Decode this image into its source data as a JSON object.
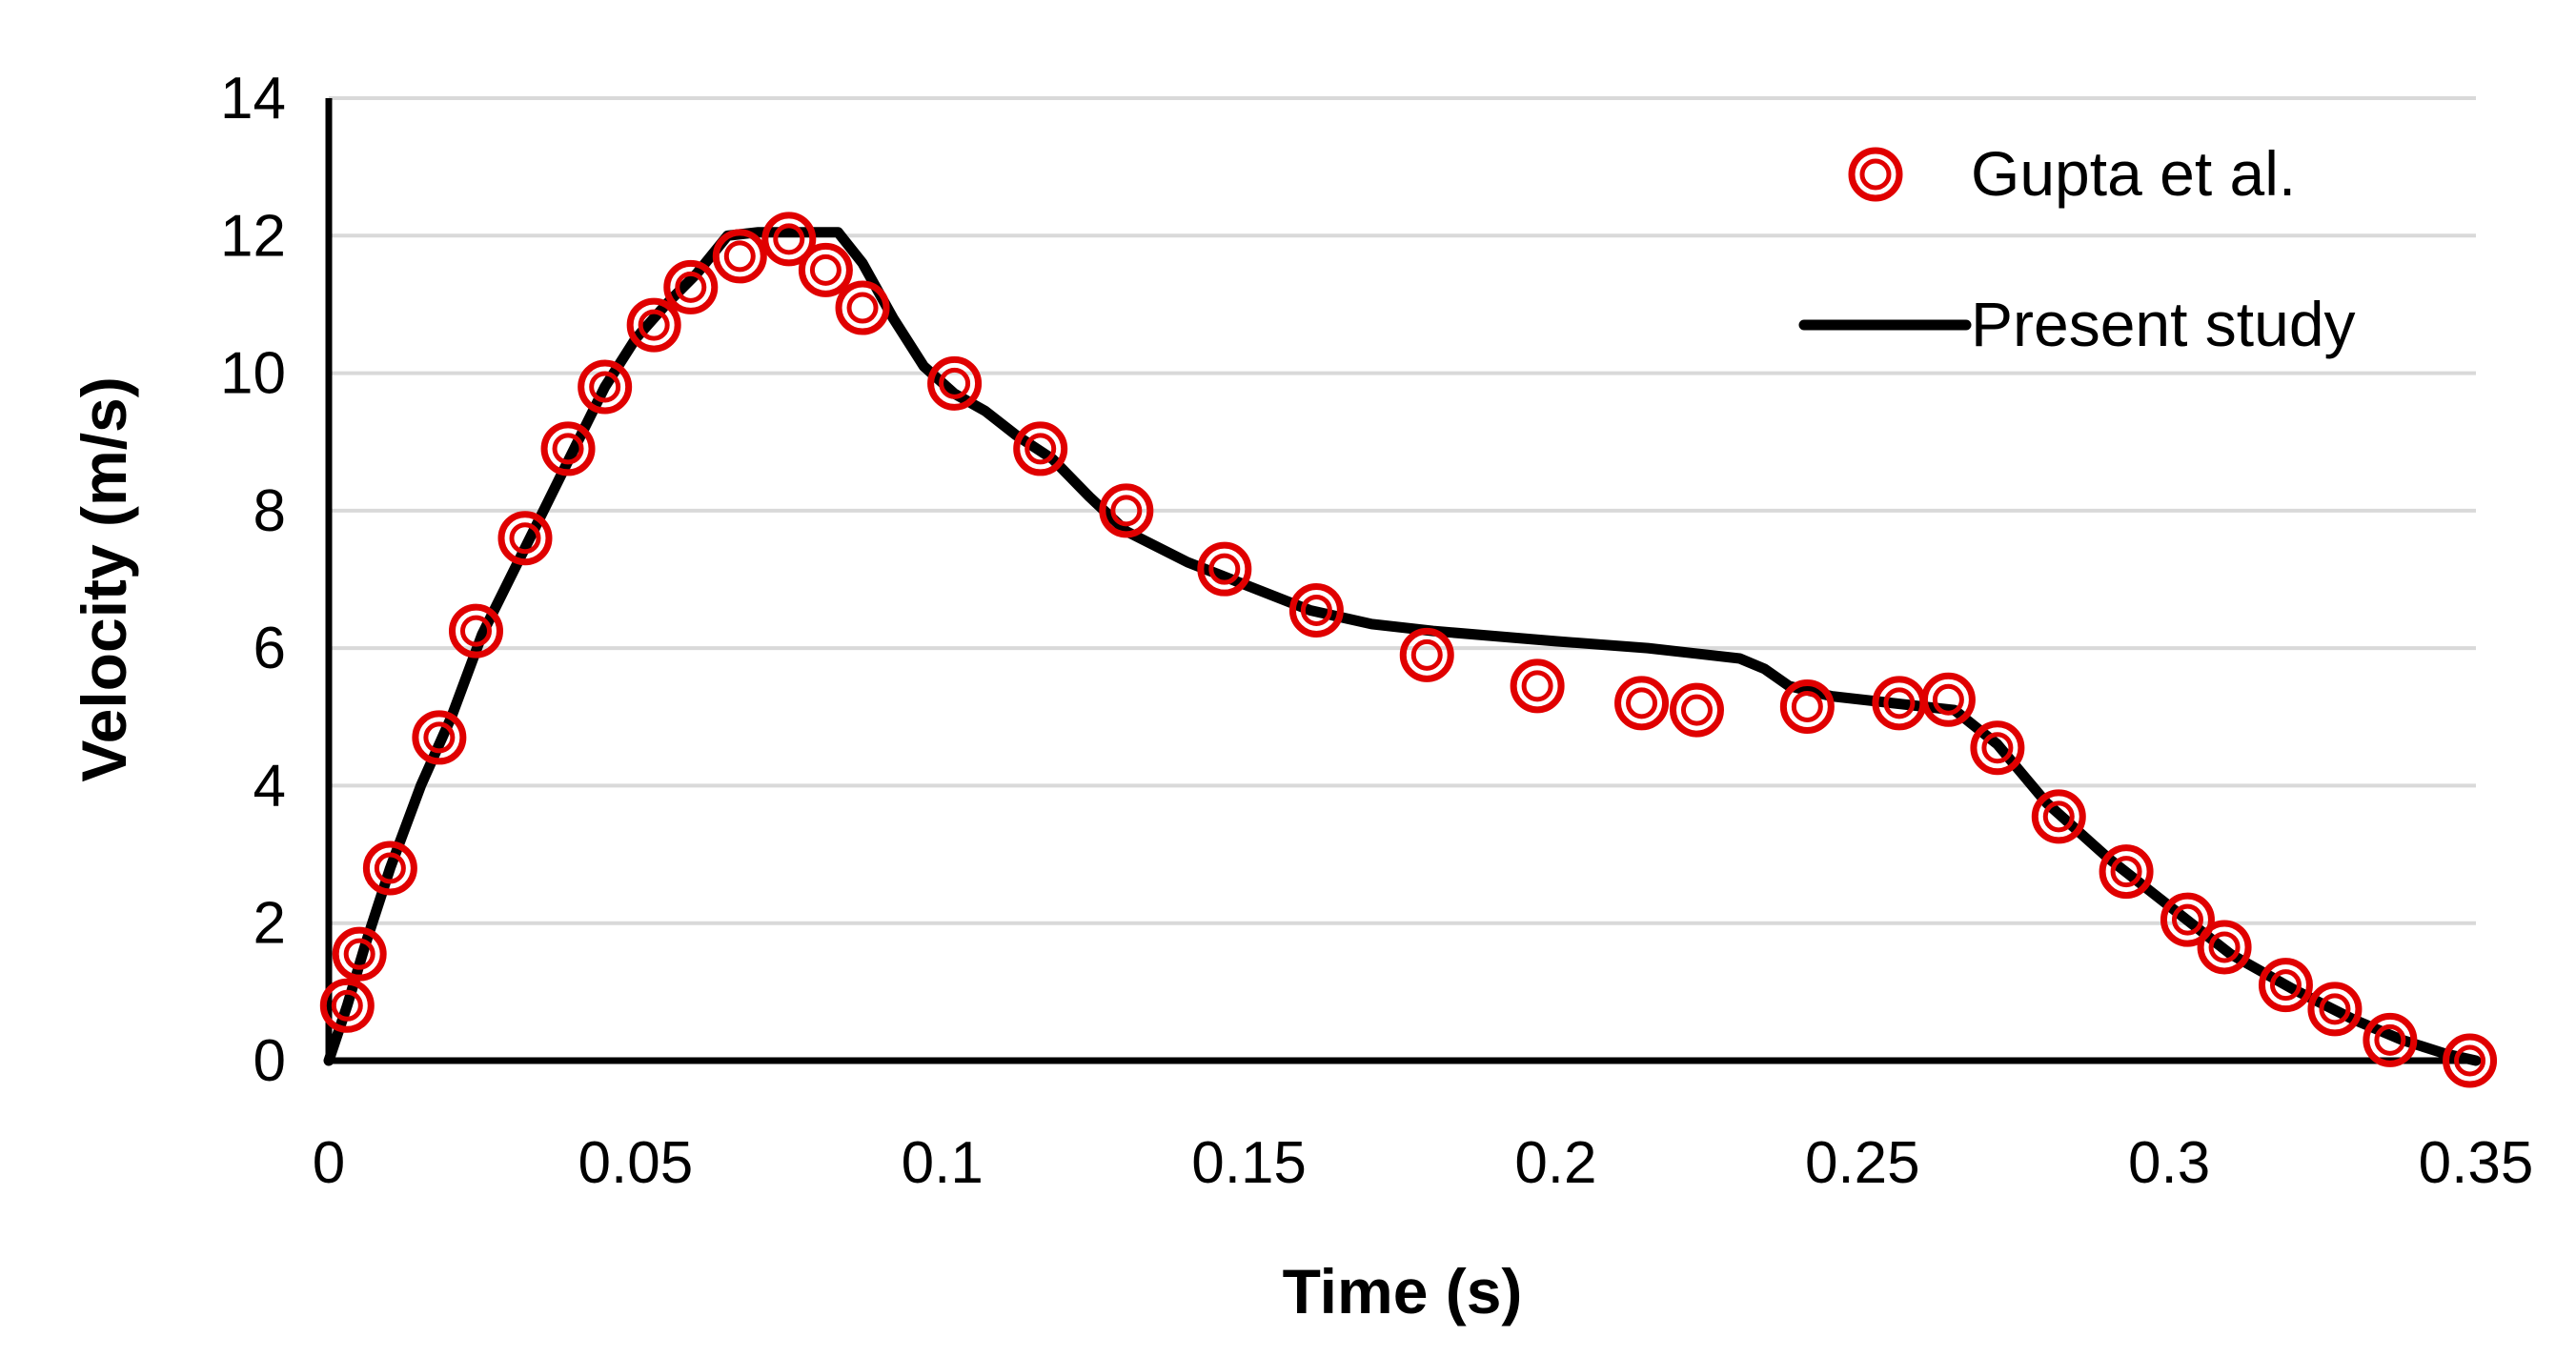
{
  "chart_data": {
    "type": "line",
    "title": "",
    "xlabel": "Time (s)",
    "ylabel": "Velocity (m/s)",
    "xlim": [
      0,
      0.35
    ],
    "ylim": [
      0,
      14
    ],
    "x_ticks": [
      0,
      0.05,
      0.1,
      0.15,
      0.2,
      0.25,
      0.3,
      0.35
    ],
    "x_tick_labels": [
      "0",
      "0.05",
      "0.1",
      "0.15",
      "0.2",
      "0.25",
      "0.3",
      "0.35"
    ],
    "y_ticks": [
      0,
      2,
      4,
      6,
      8,
      10,
      12,
      14
    ],
    "y_tick_labels": [
      "0",
      "2",
      "4",
      "6",
      "8",
      "10",
      "12",
      "14"
    ],
    "grid": "horizontal",
    "legend_position": "top-right",
    "series": [
      {
        "name": "Gupta et al.",
        "style": "markers",
        "color": "#e00000",
        "points": [
          [
            0.003,
            0.8
          ],
          [
            0.005,
            1.55
          ],
          [
            0.01,
            2.8
          ],
          [
            0.018,
            4.7
          ],
          [
            0.024,
            6.25
          ],
          [
            0.032,
            7.6
          ],
          [
            0.039,
            8.9
          ],
          [
            0.045,
            9.8
          ],
          [
            0.053,
            10.7
          ],
          [
            0.059,
            11.25
          ],
          [
            0.067,
            11.7
          ],
          [
            0.075,
            11.95
          ],
          [
            0.081,
            11.5
          ],
          [
            0.087,
            10.95
          ],
          [
            0.102,
            9.85
          ],
          [
            0.116,
            8.9
          ],
          [
            0.13,
            8.0
          ],
          [
            0.146,
            7.15
          ],
          [
            0.161,
            6.55
          ],
          [
            0.179,
            5.9
          ],
          [
            0.197,
            5.45
          ],
          [
            0.214,
            5.2
          ],
          [
            0.223,
            5.1
          ],
          [
            0.241,
            5.15
          ],
          [
            0.256,
            5.2
          ],
          [
            0.264,
            5.25
          ],
          [
            0.272,
            4.55
          ],
          [
            0.282,
            3.55
          ],
          [
            0.293,
            2.75
          ],
          [
            0.303,
            2.05
          ],
          [
            0.309,
            1.65
          ],
          [
            0.319,
            1.1
          ],
          [
            0.327,
            0.75
          ],
          [
            0.336,
            0.3
          ],
          [
            0.349,
            0.0
          ]
        ]
      },
      {
        "name": "Present study",
        "style": "line",
        "color": "#000000",
        "points": [
          [
            0.0,
            0.0
          ],
          [
            0.003,
            0.8
          ],
          [
            0.006,
            1.7
          ],
          [
            0.01,
            2.8
          ],
          [
            0.015,
            4.0
          ],
          [
            0.02,
            5.0
          ],
          [
            0.025,
            6.2
          ],
          [
            0.03,
            7.1
          ],
          [
            0.035,
            8.0
          ],
          [
            0.04,
            8.9
          ],
          [
            0.045,
            9.8
          ],
          [
            0.05,
            10.5
          ],
          [
            0.055,
            11.0
          ],
          [
            0.06,
            11.45
          ],
          [
            0.065,
            12.0
          ],
          [
            0.07,
            12.05
          ],
          [
            0.078,
            12.05
          ],
          [
            0.083,
            12.05
          ],
          [
            0.087,
            11.6
          ],
          [
            0.092,
            10.8
          ],
          [
            0.097,
            10.1
          ],
          [
            0.102,
            9.7
          ],
          [
            0.107,
            9.45
          ],
          [
            0.112,
            9.1
          ],
          [
            0.118,
            8.75
          ],
          [
            0.124,
            8.2
          ],
          [
            0.13,
            7.7
          ],
          [
            0.14,
            7.25
          ],
          [
            0.15,
            6.9
          ],
          [
            0.16,
            6.55
          ],
          [
            0.17,
            6.35
          ],
          [
            0.18,
            6.25
          ],
          [
            0.2,
            6.1
          ],
          [
            0.215,
            6.0
          ],
          [
            0.23,
            5.85
          ],
          [
            0.234,
            5.7
          ],
          [
            0.238,
            5.45
          ],
          [
            0.245,
            5.3
          ],
          [
            0.255,
            5.2
          ],
          [
            0.265,
            5.1
          ],
          [
            0.272,
            4.6
          ],
          [
            0.28,
            3.75
          ],
          [
            0.29,
            2.95
          ],
          [
            0.3,
            2.25
          ],
          [
            0.31,
            1.55
          ],
          [
            0.32,
            1.05
          ],
          [
            0.33,
            0.6
          ],
          [
            0.338,
            0.3
          ],
          [
            0.345,
            0.1
          ],
          [
            0.35,
            0.0
          ]
        ]
      }
    ]
  }
}
